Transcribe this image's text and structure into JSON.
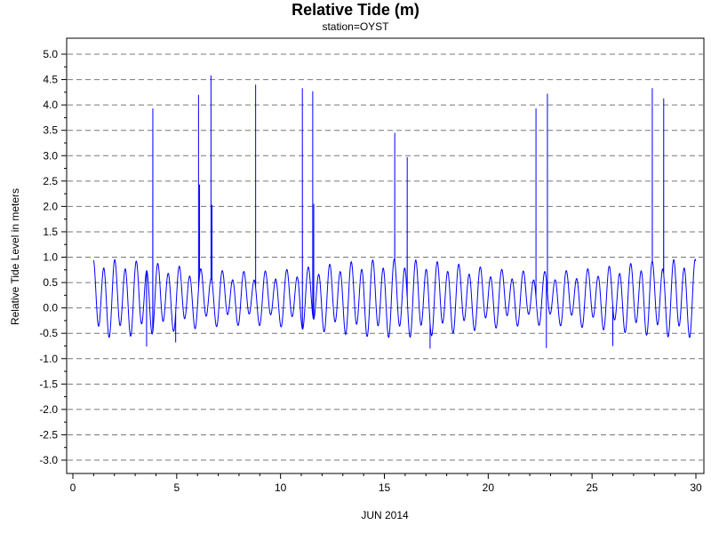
{
  "chart_data": {
    "type": "line",
    "title": "Relative Tide (m)",
    "subtitle": "station=OYST",
    "xlabel": "JUN 2014",
    "ylabel": "Relative Tide Level in meters",
    "xlim": [
      0,
      30
    ],
    "ylim": [
      -3.0,
      5.0
    ],
    "x_major_ticks": [
      0,
      5,
      10,
      15,
      20,
      25,
      30
    ],
    "x_minor_step": 1,
    "y_ticks": [
      -3.0,
      -2.5,
      -2.0,
      -1.5,
      -1.0,
      -0.5,
      0.0,
      0.5,
      1.0,
      1.5,
      2.0,
      2.5,
      3.0,
      3.5,
      4.0,
      4.5,
      5.0
    ],
    "y_tick_labels": [
      "-3.0",
      "-2.5",
      "-2.0",
      "-1.5",
      "-1.0",
      "-0.5",
      "0.0",
      "0.5",
      "1.0",
      "1.5",
      "2.0",
      "2.5",
      "3.0",
      "3.5",
      "4.0",
      "4.5",
      "5.0"
    ],
    "y_minor_step": 0.25,
    "grid": "horizontal dashed at major y ticks",
    "series_color": "#0000ff",
    "x_range": [
      1.0,
      30.0
    ],
    "tide_pattern": {
      "type": "mixed semidiurnal",
      "cycles_per_day": 1.932,
      "baseline_m": 0.2,
      "typical_range_m": [
        -0.8,
        1.25
      ]
    },
    "spikes": [
      {
        "x": 3.85,
        "y": 3.93
      },
      {
        "x": 6.05,
        "y": 4.2
      },
      {
        "x": 6.1,
        "y": 2.43
      },
      {
        "x": 6.65,
        "y": 4.58
      },
      {
        "x": 6.7,
        "y": 2.03
      },
      {
        "x": 8.8,
        "y": 4.4
      },
      {
        "x": 11.05,
        "y": 4.33
      },
      {
        "x": 11.55,
        "y": 4.27
      },
      {
        "x": 11.6,
        "y": 2.05
      },
      {
        "x": 15.5,
        "y": 3.45
      },
      {
        "x": 16.1,
        "y": 2.97
      },
      {
        "x": 22.3,
        "y": 3.93
      },
      {
        "x": 22.85,
        "y": 4.22
      },
      {
        "x": 27.9,
        "y": 4.33
      },
      {
        "x": 28.45,
        "y": 4.13
      }
    ],
    "dips": [
      {
        "x": 3.55,
        "y": -0.76
      },
      {
        "x": 4.95,
        "y": -0.68
      },
      {
        "x": 17.2,
        "y": -0.8
      },
      {
        "x": 22.8,
        "y": -0.79
      },
      {
        "x": 26.0,
        "y": -0.75
      }
    ]
  }
}
